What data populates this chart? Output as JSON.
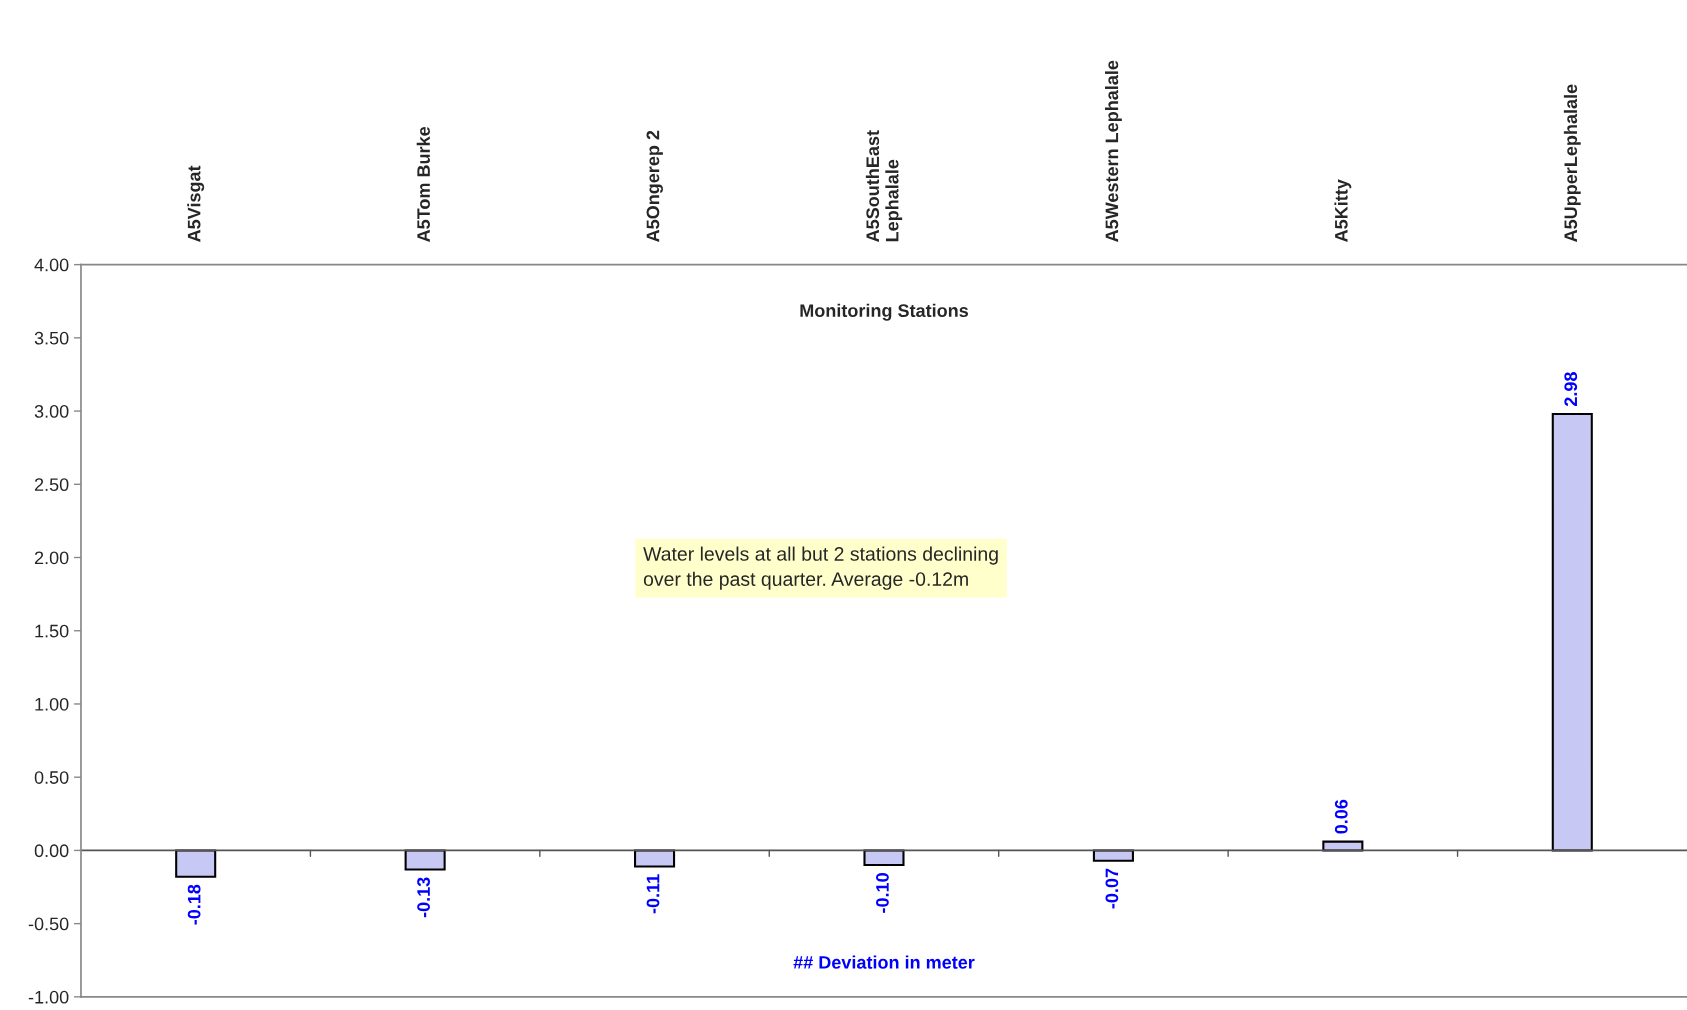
{
  "chart_data": {
    "type": "bar",
    "title": "Monitoring Stations",
    "xlabel": "## Deviation in meter",
    "categories": [
      "A5Visgat",
      "A5Tom Burke",
      "A5Ongerep 2",
      "A5SouthEast\nLephalale",
      "A5Western Lephalale",
      "A5Kitty",
      "A5UpperLephalale"
    ],
    "values": [
      -0.18,
      -0.13,
      -0.11,
      -0.1,
      -0.07,
      0.06,
      2.98
    ],
    "value_labels": [
      "-0.18",
      "-0.13",
      "-0.11",
      "-0.10",
      "-0.07",
      "0.06",
      "2.98"
    ],
    "color": "#c8c8f4",
    "ylim": [
      -1.0,
      4.0
    ],
    "yticks": [
      {
        "value": -1.0,
        "label": "-1.00"
      },
      {
        "value": -0.5,
        "label": "-0.50"
      },
      {
        "value": 0,
        "label": "0.00"
      },
      {
        "value": 0.5,
        "label": "0.50"
      },
      {
        "value": 1.0,
        "label": "1.00"
      },
      {
        "value": 1.5,
        "label": "1.50"
      },
      {
        "value": 2.0,
        "label": "2.00"
      },
      {
        "value": 2.5,
        "label": "2.50"
      },
      {
        "value": 3.0,
        "label": "3.00"
      },
      {
        "value": 3.5,
        "label": "3.50"
      },
      {
        "value": 4.0,
        "label": "4.00"
      }
    ],
    "annotations": [
      "Water levels at all but 2 stations declining\nover the past quarter. Average -0.12m"
    ],
    "legend": false
  }
}
